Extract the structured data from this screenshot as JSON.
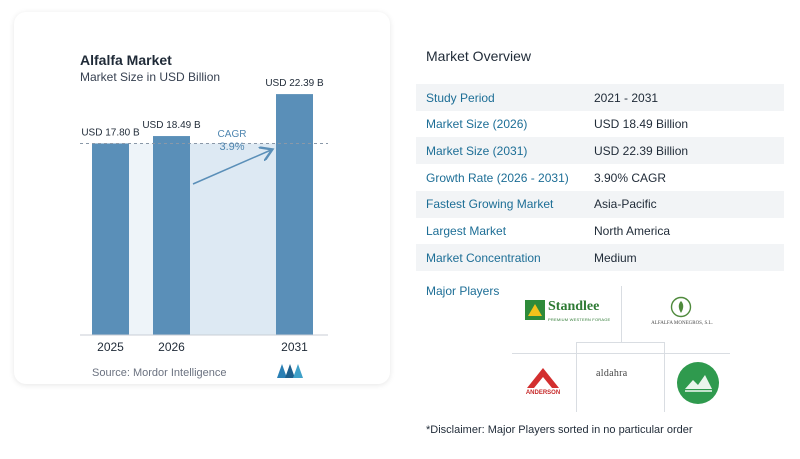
{
  "chart": {
    "title": "Alfalfa Market",
    "subtitle": "Market Size in USD Billion",
    "source": "Source:  Mordor Intelligence",
    "cagr_label": "CAGR",
    "cagr_value": "3.9%"
  },
  "chart_data": {
    "type": "bar",
    "categories": [
      "2025",
      "2026",
      "2031"
    ],
    "values": [
      17.8,
      18.49,
      22.39
    ],
    "data_labels": [
      "USD 17.80 B",
      "USD 18.49 B",
      "USD 22.39 B"
    ],
    "title": "Alfalfa Market",
    "subtitle": "Market Size in USD Billion",
    "ylabel": "",
    "xlabel": "",
    "ylim": [
      0,
      23.7
    ],
    "annotation": "CAGR 3.9%",
    "bar_color": "#5a8fb8",
    "shade_color": "#dde9f3"
  },
  "overview": {
    "title": "Market Overview",
    "rows": [
      {
        "label": "Study Period",
        "value": "2021 - 2031"
      },
      {
        "label": "Market Size (2026)",
        "value": "USD 18.49 Billion"
      },
      {
        "label": "Market Size (2031)",
        "value": "USD 22.39 Billion"
      },
      {
        "label": "Growth Rate (2026 - 2031)",
        "value": "3.90% CAGR"
      },
      {
        "label": "Fastest Growing Market",
        "value": "Asia-Pacific"
      },
      {
        "label": "Largest Market",
        "value": "North America"
      },
      {
        "label": "Market Concentration",
        "value": "Medium"
      }
    ]
  },
  "players": {
    "title": "Major Players",
    "standlee": "Standlee",
    "standlee_sub": "PREMIUM WESTERN FORAGE",
    "alfalfa_monegros": "ALFALFA MONEGROS, S.L.",
    "anderson": "ANDERSON",
    "aldahra": "aldahra"
  },
  "disclaimer": "*Disclaimer: Major Players sorted in no particular order",
  "colors": {
    "accent": "#1d6e96",
    "bar": "#5a8fb8",
    "row_shade": "#f2f4f6"
  }
}
